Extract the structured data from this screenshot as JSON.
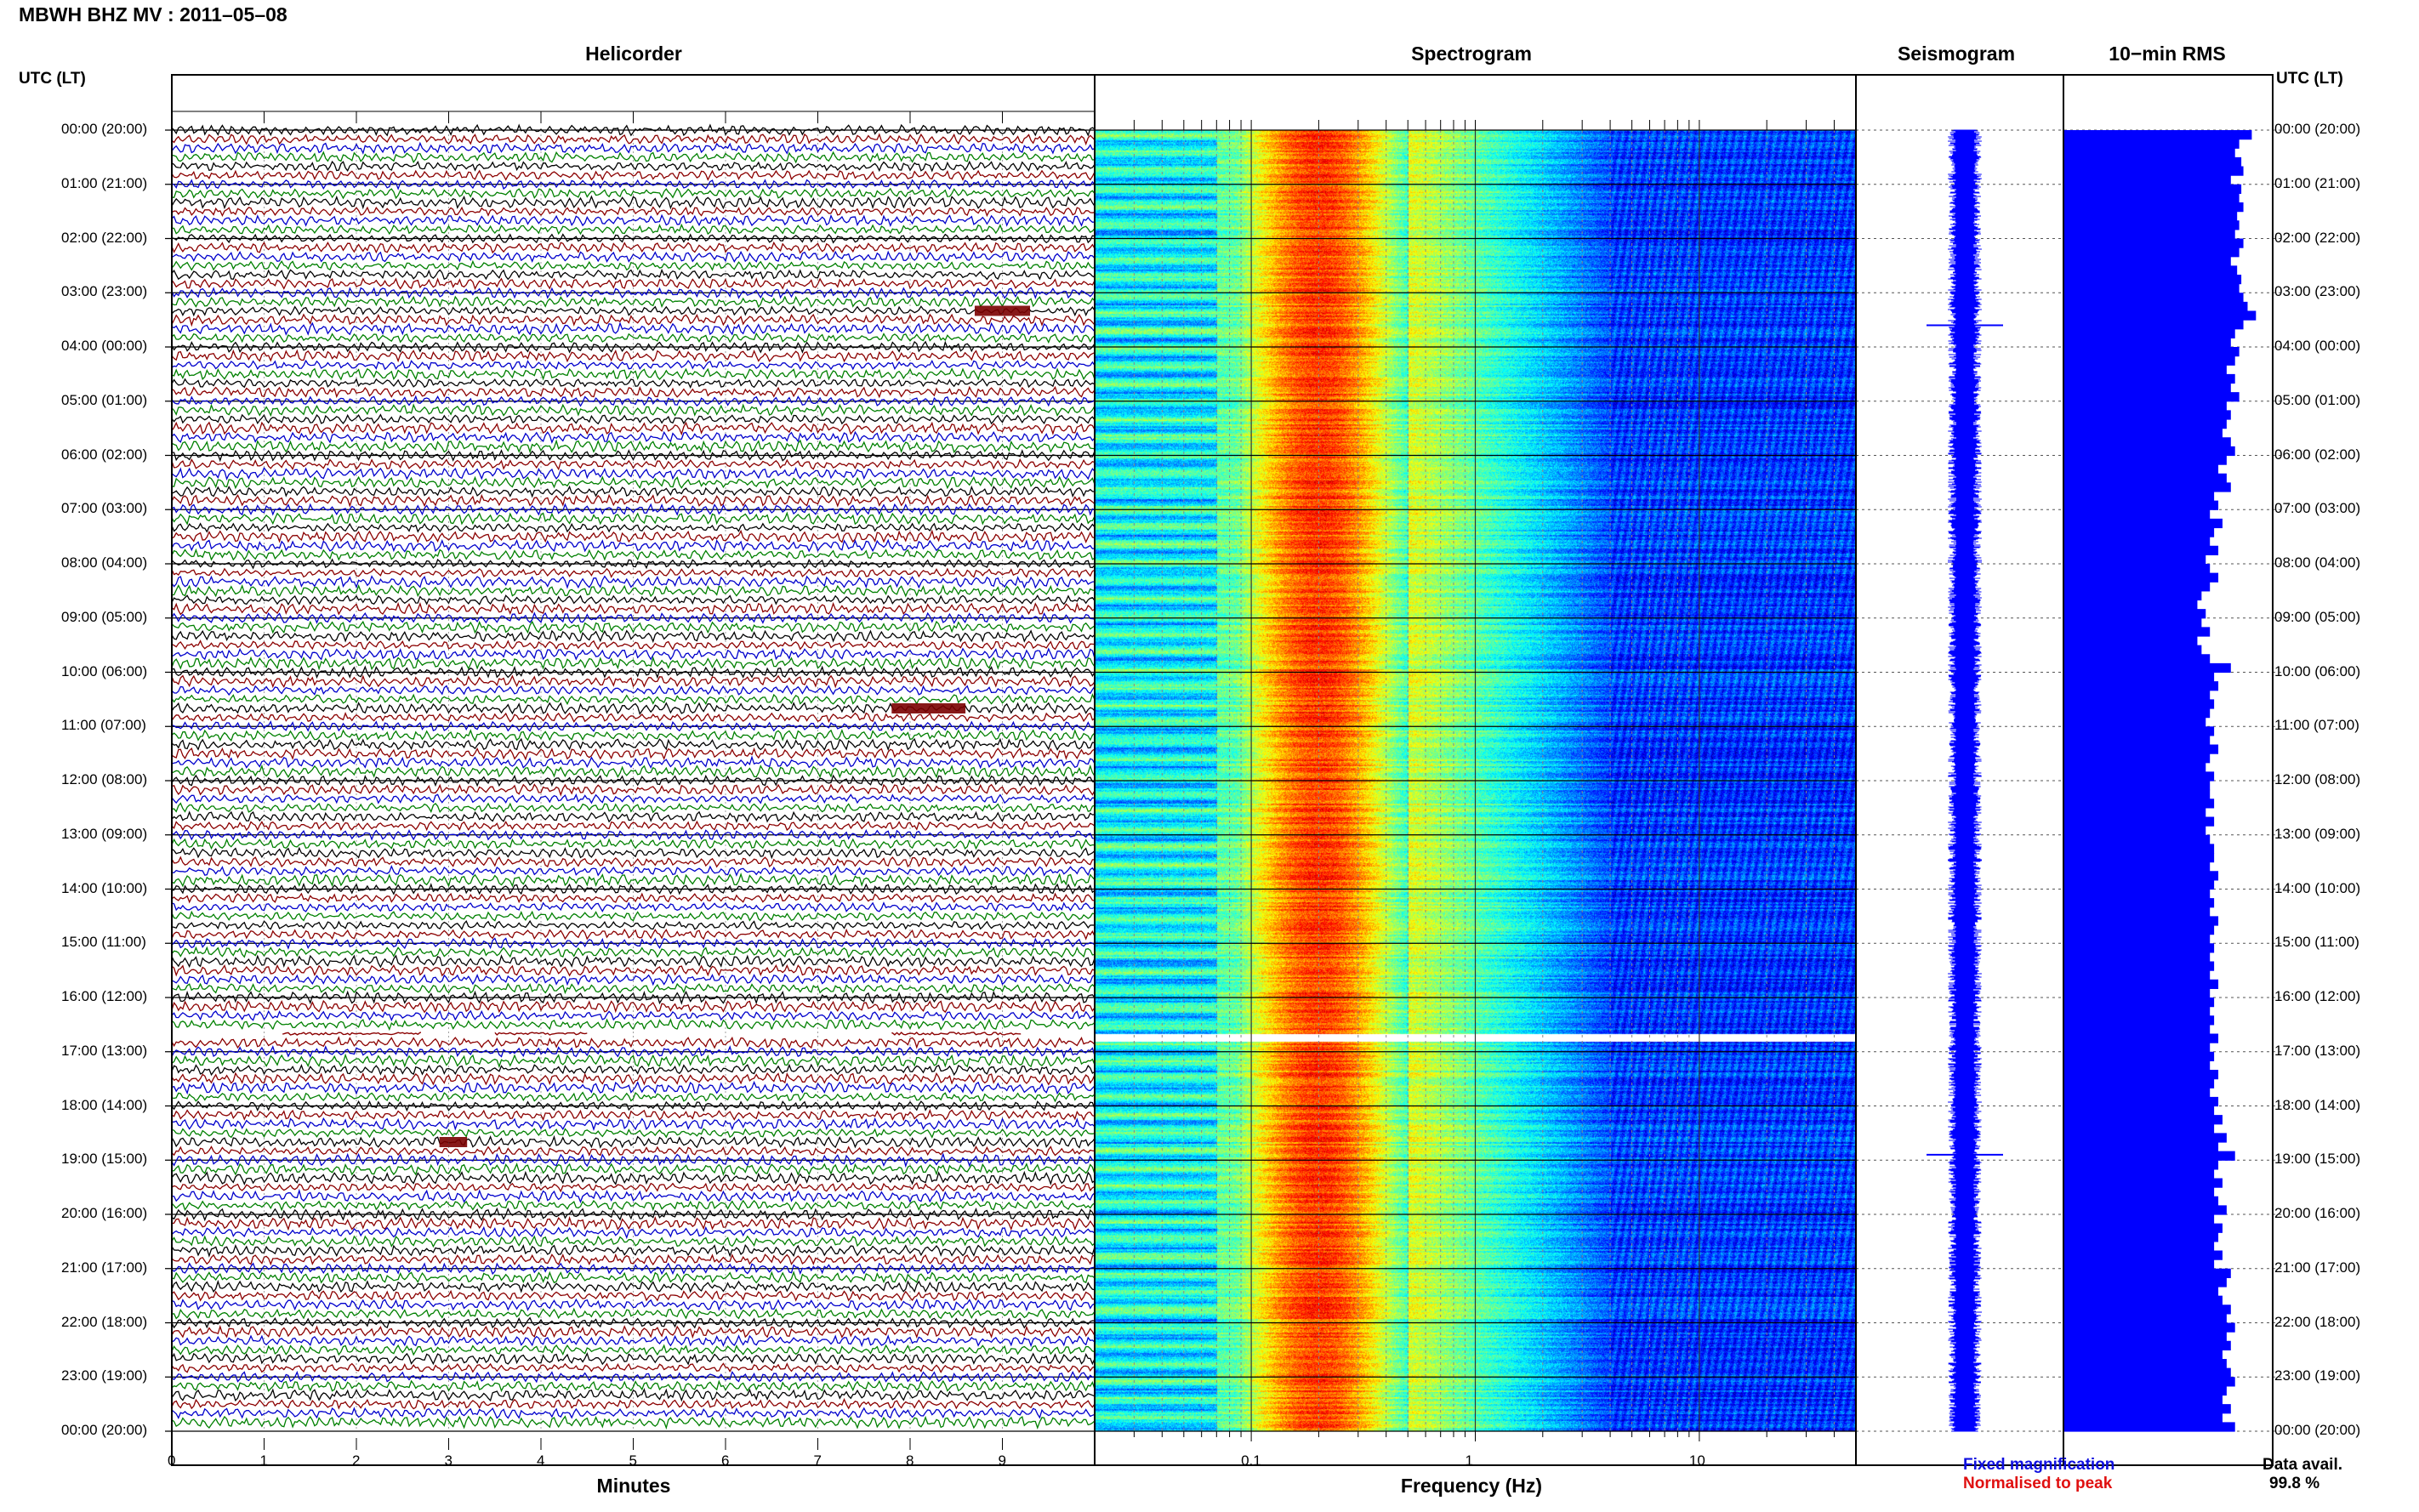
{
  "header": {
    "title": "MBWH BHZ MV : 2011–05–08",
    "panels": {
      "helicorder": "Helicorder",
      "spectrogram": "Spectrogram",
      "seismogram": "Seismogram",
      "rms": "10−min RMS"
    },
    "axis_head_left": "UTC (LT)",
    "axis_head_right": "UTC (LT)"
  },
  "footer": {
    "legend_fixed": "Fixed magnification",
    "legend_normalised": "Normalised to peak",
    "data_avail_label": "Data avail.",
    "data_avail_value": "99.8 %"
  },
  "colors": {
    "trace_cycle": [
      "#000000",
      "#8b0000",
      "#0000cc",
      "#008000"
    ],
    "seismogram": "#0000ff",
    "rms_bar": "#0000ff",
    "legend_fixed": "#1010e0",
    "legend_normalised": "#e01010"
  },
  "chart_data": [
    {
      "type": "line",
      "name": "helicorder",
      "title": "Helicorder",
      "xlabel": "Minutes",
      "x_ticks": [
        "0",
        "1",
        "2",
        "3",
        "4",
        "5",
        "6",
        "7",
        "8",
        "9"
      ],
      "xlim": [
        0,
        10
      ],
      "time_labels": [
        "00:00 (20:00)",
        "01:00 (21:00)",
        "02:00 (22:00)",
        "03:00 (23:00)",
        "04:00 (00:00)",
        "05:00 (01:00)",
        "06:00 (02:00)",
        "07:00 (03:00)",
        "08:00 (04:00)",
        "09:00 (05:00)",
        "10:00 (06:00)",
        "11:00 (07:00)",
        "12:00 (08:00)",
        "13:00 (09:00)",
        "14:00 (10:00)",
        "15:00 (11:00)",
        "16:00 (12:00)",
        "17:00 (13:00)",
        "18:00 (14:00)",
        "19:00 (15:00)",
        "20:00 (16:00)",
        "21:00 (17:00)",
        "22:00 (18:00)",
        "23:00 (19:00)",
        "00:00 (20:00)"
      ],
      "traces_per_hour": 6,
      "gap_row": 100,
      "events": [
        {
          "row": 20,
          "minute_start": 8.7,
          "minute_end": 9.3
        },
        {
          "row": 64,
          "minute_start": 7.8,
          "minute_end": 8.6
        },
        {
          "row": 112,
          "minute_start": 2.9,
          "minute_end": 3.2
        }
      ]
    },
    {
      "type": "heatmap",
      "name": "spectrogram",
      "title": "Spectrogram",
      "xlabel": "Frequency (Hz)",
      "x_scale": "log",
      "xlim": [
        0.02,
        50
      ],
      "x_ticks": [
        "0.1",
        "1",
        "10"
      ],
      "colormap": "jet",
      "peak_band_hz": [
        0.15,
        0.3
      ],
      "gap_row": 100
    },
    {
      "type": "line",
      "name": "seismogram",
      "title": "Seismogram",
      "spikes_hours": [
        3.6,
        18.9
      ]
    },
    {
      "type": "bar",
      "name": "rms",
      "title": "10−min RMS",
      "values": [
        0.9,
        0.84,
        0.82,
        0.85,
        0.86,
        0.8,
        0.85,
        0.84,
        0.86,
        0.83,
        0.84,
        0.82,
        0.86,
        0.84,
        0.8,
        0.83,
        0.85,
        0.84,
        0.86,
        0.88,
        0.92,
        0.86,
        0.82,
        0.8,
        0.84,
        0.82,
        0.78,
        0.82,
        0.8,
        0.84,
        0.78,
        0.8,
        0.78,
        0.76,
        0.8,
        0.82,
        0.78,
        0.74,
        0.78,
        0.8,
        0.72,
        0.74,
        0.7,
        0.76,
        0.72,
        0.7,
        0.74,
        0.68,
        0.7,
        0.74,
        0.7,
        0.66,
        0.64,
        0.68,
        0.66,
        0.7,
        0.64,
        0.66,
        0.7,
        0.8,
        0.72,
        0.74,
        0.7,
        0.72,
        0.7,
        0.68,
        0.72,
        0.7,
        0.74,
        0.7,
        0.68,
        0.72,
        0.7,
        0.7,
        0.72,
        0.68,
        0.72,
        0.68,
        0.7,
        0.72,
        0.72,
        0.7,
        0.74,
        0.72,
        0.7,
        0.72,
        0.7,
        0.74,
        0.72,
        0.7,
        0.72,
        0.7,
        0.72,
        0.7,
        0.74,
        0.7,
        0.72,
        0.7,
        0.72,
        0.7,
        0.74,
        0.7,
        0.72,
        0.7,
        0.74,
        0.72,
        0.7,
        0.74,
        0.72,
        0.76,
        0.72,
        0.78,
        0.74,
        0.82,
        0.74,
        0.72,
        0.76,
        0.72,
        0.74,
        0.78,
        0.72,
        0.76,
        0.74,
        0.72,
        0.76,
        0.72,
        0.8,
        0.78,
        0.74,
        0.76,
        0.8,
        0.78,
        0.82,
        0.78,
        0.8,
        0.76,
        0.78,
        0.8,
        0.82,
        0.78,
        0.76,
        0.8,
        0.76,
        0.82
      ]
    }
  ]
}
